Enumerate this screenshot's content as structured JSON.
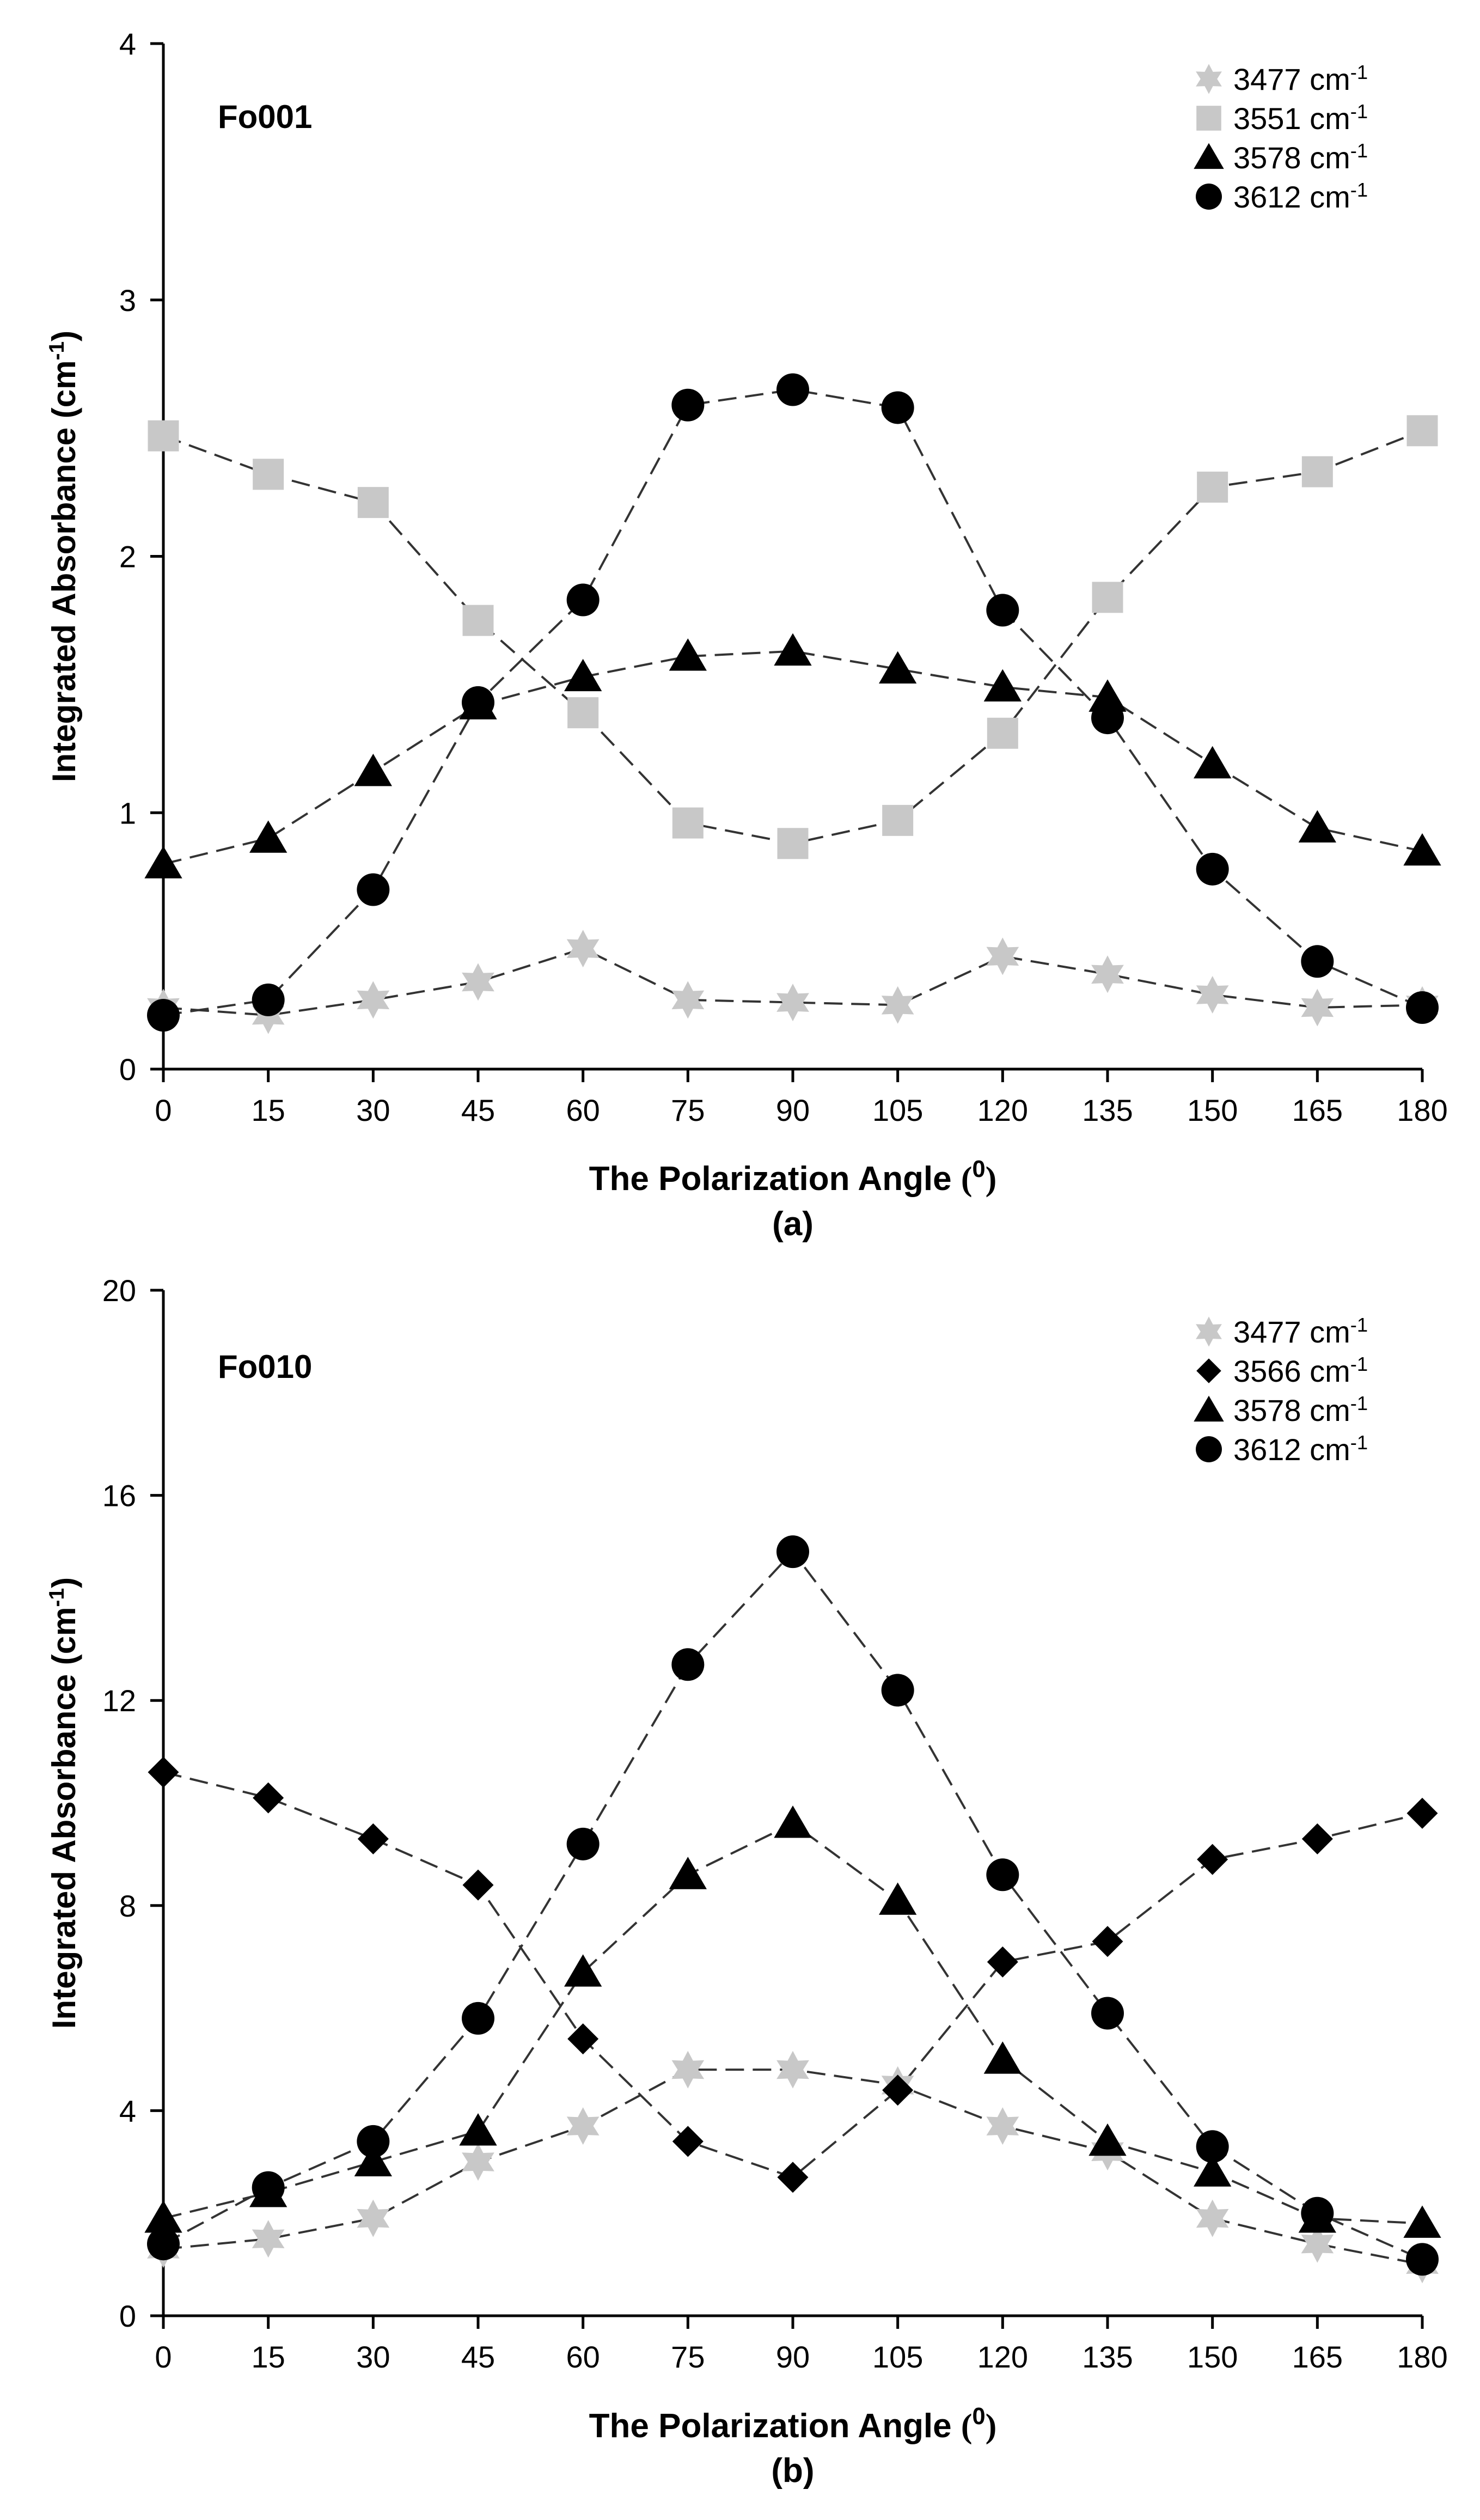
{
  "chart_data": [
    {
      "type": "scatter",
      "panel_label": "(a)",
      "sample_label": "Fo001",
      "xlabel": "The Polarization Angle",
      "xlabel_unit": "(0)",
      "ylabel": "Integrated Absorbance (cm-1)",
      "xlim": [
        0,
        180
      ],
      "ylim": [
        0,
        4
      ],
      "xticks": [
        0,
        15,
        30,
        45,
        60,
        75,
        90,
        105,
        120,
        135,
        150,
        165,
        180
      ],
      "yticks": [
        0,
        1,
        2,
        3,
        4
      ],
      "x": [
        0,
        15,
        30,
        45,
        60,
        75,
        90,
        105,
        120,
        135,
        150,
        165,
        180
      ],
      "series": [
        {
          "name": "3477 cm-1",
          "marker": "star",
          "color": "#c8c8c8",
          "values": [
            0.24,
            0.21,
            0.27,
            0.34,
            0.47,
            0.27,
            0.26,
            0.25,
            0.44,
            0.37,
            0.29,
            0.24,
            0.25
          ]
        },
        {
          "name": "3551 cm-1",
          "marker": "square",
          "color": "#c8c8c8",
          "values": [
            2.47,
            2.32,
            2.21,
            1.75,
            1.39,
            0.96,
            0.88,
            0.97,
            1.31,
            1.84,
            2.27,
            2.33,
            2.49
          ]
        },
        {
          "name": "3578 cm-1",
          "marker": "triangle",
          "color": "#000000",
          "values": [
            0.8,
            0.9,
            1.16,
            1.42,
            1.53,
            1.61,
            1.63,
            1.56,
            1.49,
            1.45,
            1.19,
            0.94,
            0.85
          ]
        },
        {
          "name": "3612 cm-1",
          "marker": "circle",
          "color": "#000000",
          "values": [
            0.21,
            0.27,
            0.7,
            1.43,
            1.83,
            2.59,
            2.65,
            2.58,
            1.79,
            1.37,
            0.78,
            0.42,
            0.24
          ]
        }
      ]
    },
    {
      "type": "scatter",
      "panel_label": "(b)",
      "sample_label": "Fo010",
      "xlabel": "The Polarization Angle",
      "xlabel_unit": "(0)",
      "ylabel": "Integrated Absorbance (cm-1)",
      "xlim": [
        0,
        180
      ],
      "ylim": [
        0,
        20
      ],
      "xticks": [
        0,
        15,
        30,
        45,
        60,
        75,
        90,
        105,
        120,
        135,
        150,
        165,
        180
      ],
      "yticks": [
        0,
        4,
        8,
        12,
        16,
        20
      ],
      "x": [
        0,
        15,
        30,
        45,
        60,
        75,
        90,
        105,
        120,
        135,
        150,
        165,
        180
      ],
      "series": [
        {
          "name": "3477 cm-1",
          "marker": "star",
          "color": "#c8c8c8",
          "values": [
            1.3,
            1.5,
            1.9,
            3.0,
            3.7,
            4.8,
            4.8,
            4.5,
            3.7,
            3.2,
            1.9,
            1.4,
            1.0
          ]
        },
        {
          "name": "3566 cm-1",
          "marker": "diamond",
          "color": "#000000",
          "values": [
            10.6,
            10.1,
            9.3,
            8.4,
            5.4,
            3.4,
            2.7,
            4.4,
            6.9,
            7.3,
            8.9,
            9.3,
            9.8
          ]
        },
        {
          "name": "3578 cm-1",
          "marker": "triangle",
          "color": "#000000",
          "values": [
            1.9,
            2.4,
            3.0,
            3.6,
            6.7,
            8.6,
            9.6,
            8.1,
            5.0,
            3.4,
            2.8,
            1.9,
            1.8
          ]
        },
        {
          "name": "3612 cm-1",
          "marker": "circle",
          "color": "#000000",
          "values": [
            1.4,
            2.5,
            3.4,
            5.8,
            9.2,
            12.7,
            14.9,
            12.2,
            8.6,
            5.9,
            3.3,
            2.0,
            1.1
          ]
        }
      ]
    }
  ]
}
